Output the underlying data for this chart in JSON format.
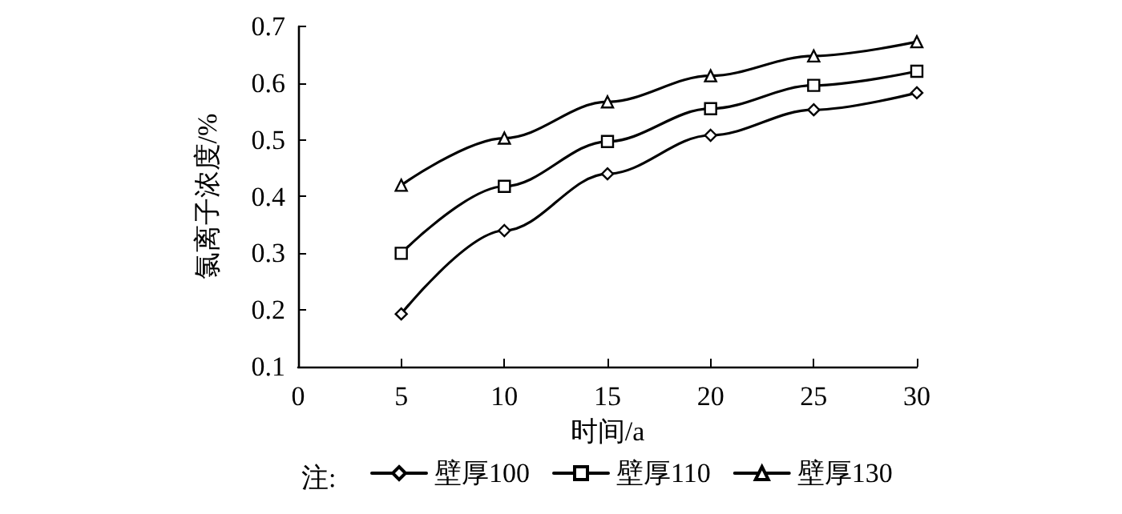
{
  "chart_data": {
    "type": "line",
    "xlabel": "时间/a",
    "ylabel": "氯离子浓度/%",
    "x": [
      5,
      10,
      15,
      20,
      25,
      30
    ],
    "series": [
      {
        "name": "壁厚100",
        "color": "#000000",
        "marker": "diamond",
        "values": [
          0.193,
          0.34,
          0.44,
          0.508,
          0.553,
          0.583
        ]
      },
      {
        "name": "壁厚110",
        "color": "#000000",
        "marker": "square",
        "values": [
          0.3,
          0.418,
          0.497,
          0.555,
          0.596,
          0.621
        ]
      },
      {
        "name": "壁厚130",
        "color": "#000000",
        "marker": "triangle",
        "values": [
          0.42,
          0.503,
          0.567,
          0.613,
          0.648,
          0.673
        ]
      }
    ],
    "xlim": [
      0,
      30
    ],
    "xticks": [
      0,
      5,
      10,
      15,
      20,
      25,
      30
    ],
    "ylim": [
      0.1,
      0.7
    ],
    "yticks": [
      0.1,
      0.2,
      0.3,
      0.4,
      0.5,
      0.6,
      0.7
    ],
    "grid": false,
    "legend": "bottom",
    "line_style": "solid",
    "annotations": [
      "注:"
    ]
  }
}
